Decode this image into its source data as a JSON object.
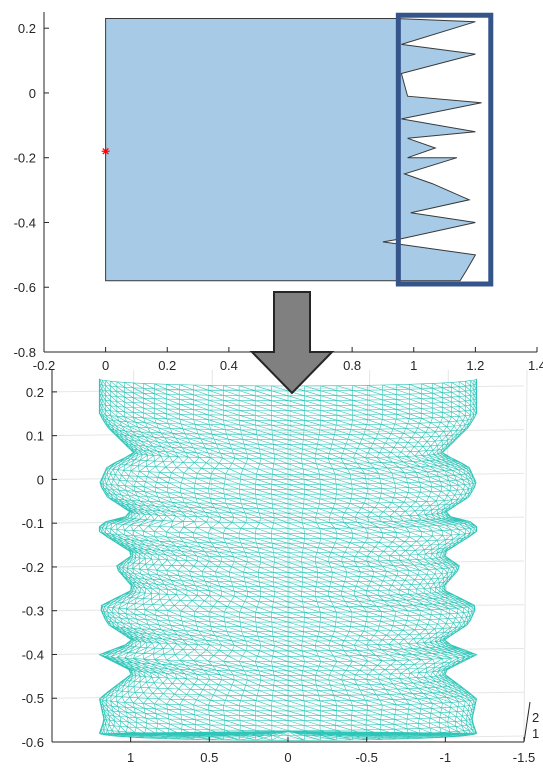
{
  "colors": {
    "profile_fill": "#a7cbe6",
    "profile_edge": "#3a3a3a",
    "highlight_box": "#34548a",
    "marker": "#ff0000",
    "arrow_fill": "#808080",
    "arrow_edge": "#262626",
    "mesh": "#2ec6b8",
    "axis": "#262626",
    "grid3d": "#e6e6e6"
  },
  "chart_data": [
    {
      "type": "area",
      "title": "",
      "xlabel": "",
      "ylabel": "",
      "xlim": [
        -0.2,
        1.4
      ],
      "ylim": [
        -0.8,
        0.25
      ],
      "x_ticks": [
        "-0.2",
        "0",
        "0.2",
        "0.4",
        "0.6",
        "0.8",
        "1",
        "1.2",
        "1.4"
      ],
      "y_ticks": [
        "0.2",
        "0",
        "-0.2",
        "-0.4",
        "-0.6",
        "-0.8"
      ],
      "rect_part": {
        "x_min": 0,
        "x_max": 0.94,
        "y_min": -0.58,
        "y_max": 0.23
      },
      "wavy_edge": [
        [
          0.94,
          0.23
        ],
        [
          1.2,
          0.22
        ],
        [
          0.96,
          0.15
        ],
        [
          1.2,
          0.12
        ],
        [
          0.96,
          0.06
        ],
        [
          0.98,
          -0.01
        ],
        [
          1.22,
          -0.03
        ],
        [
          0.96,
          -0.08
        ],
        [
          1.2,
          -0.12
        ],
        [
          0.98,
          -0.14
        ],
        [
          1.07,
          -0.17
        ],
        [
          0.98,
          -0.2
        ],
        [
          1.14,
          -0.2
        ],
        [
          0.97,
          -0.25
        ],
        [
          1.06,
          -0.28
        ],
        [
          1.18,
          -0.33
        ],
        [
          0.99,
          -0.37
        ],
        [
          1.2,
          -0.4
        ],
        [
          0.96,
          -0.45
        ],
        [
          0.9,
          -0.46
        ],
        [
          1.2,
          -0.5
        ],
        [
          1.17,
          -0.55
        ],
        [
          1.15,
          -0.58
        ],
        [
          0.94,
          -0.58
        ]
      ],
      "point": {
        "x": 0,
        "y": -0.18
      },
      "highlight_box": {
        "x_min": 0.95,
        "x_max": 1.25,
        "y_min": -0.59,
        "y_max": 0.24
      }
    },
    {
      "type": "mesh-3d",
      "title": "",
      "xlim": [
        1.5,
        -1.5
      ],
      "ylim": [
        -0.6,
        0.25
      ],
      "x_ticks": [
        "1",
        "0.5",
        "0",
        "-0.5",
        "-1",
        "-1.5"
      ],
      "y_ticks": [
        "0.2",
        "0.1",
        "0",
        "-0.1",
        "-0.2",
        "-0.3",
        "-0.4",
        "-0.5",
        "-0.6"
      ],
      "depth_ticks": [
        "2",
        "1"
      ],
      "radius_profile": [
        [
          0.23,
          1.2
        ],
        [
          0.2,
          1.2
        ],
        [
          0.17,
          1.2
        ],
        [
          0.15,
          1.2
        ],
        [
          0.12,
          1.15
        ],
        [
          0.06,
          0.98
        ],
        [
          0.03,
          1.15
        ],
        [
          -0.01,
          1.2
        ],
        [
          -0.04,
          1.15
        ],
        [
          -0.08,
          0.98
        ],
        [
          -0.1,
          1.2
        ],
        [
          -0.12,
          1.2
        ],
        [
          -0.17,
          0.98
        ],
        [
          -0.2,
          1.1
        ],
        [
          -0.25,
          0.98
        ],
        [
          -0.29,
          1.2
        ],
        [
          -0.33,
          1.15
        ],
        [
          -0.37,
          0.98
        ],
        [
          -0.4,
          1.2
        ],
        [
          -0.44,
          0.98
        ],
        [
          -0.5,
          1.2
        ],
        [
          -0.55,
          1.17
        ],
        [
          -0.58,
          1.2
        ]
      ]
    }
  ]
}
